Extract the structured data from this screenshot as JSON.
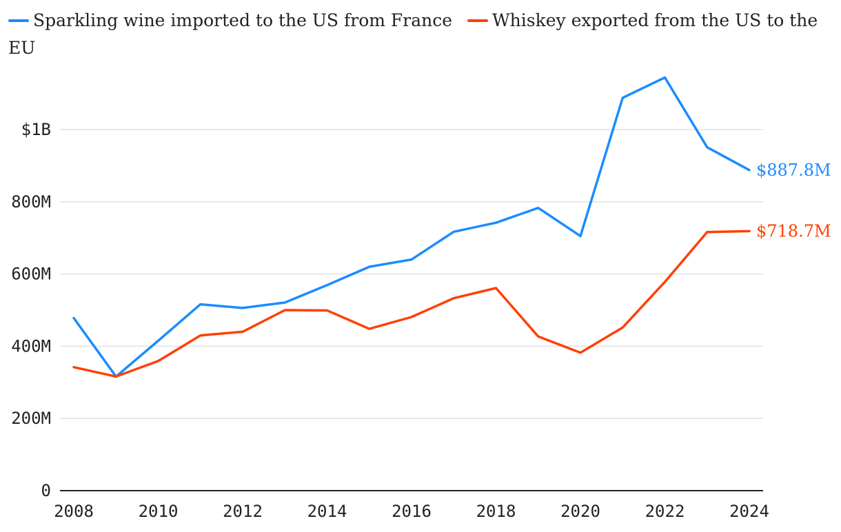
{
  "chart_data": {
    "type": "line",
    "title": "",
    "xlabel": "",
    "ylabel": "",
    "x": [
      2008,
      2009,
      2010,
      2011,
      2012,
      2013,
      2014,
      2015,
      2016,
      2017,
      2018,
      2019,
      2020,
      2021,
      2022,
      2023,
      2024
    ],
    "xlim": [
      2008,
      2024
    ],
    "ylim": [
      0,
      1150000000
    ],
    "grid": true,
    "legend_position": "top-left",
    "x_ticks": [
      {
        "value": 2008,
        "label": "2008"
      },
      {
        "value": 2010,
        "label": "2010"
      },
      {
        "value": 2012,
        "label": "2012"
      },
      {
        "value": 2014,
        "label": "2014"
      },
      {
        "value": 2016,
        "label": "2016"
      },
      {
        "value": 2018,
        "label": "2018"
      },
      {
        "value": 2020,
        "label": "2020"
      },
      {
        "value": 2022,
        "label": "2022"
      },
      {
        "value": 2024,
        "label": "2024"
      }
    ],
    "y_ticks": [
      {
        "value": 0,
        "label": "0"
      },
      {
        "value": 200000000,
        "label": "200M"
      },
      {
        "value": 400000000,
        "label": "400M"
      },
      {
        "value": 600000000,
        "label": "600M"
      },
      {
        "value": 800000000,
        "label": "800M"
      },
      {
        "value": 1000000000,
        "label": "$1B"
      }
    ],
    "series": [
      {
        "name": "Sparkling wine imported to the US from France",
        "color": "#1a8cff",
        "values": [
          478000000,
          316000000,
          415000000,
          516000000,
          506000000,
          521000000,
          569000000,
          620000000,
          640000000,
          717000000,
          742000000,
          783000000,
          705000000,
          1088000000,
          1144000000,
          951000000,
          887800000
        ],
        "end_label": "$887.8M"
      },
      {
        "name": "Whiskey exported from the US to the EU",
        "color": "#ff4000",
        "values": [
          342000000,
          316000000,
          359000000,
          430000000,
          440000000,
          500000000,
          499000000,
          448000000,
          481000000,
          533000000,
          561000000,
          427000000,
          382000000,
          452000000,
          578000000,
          716000000,
          718700000
        ],
        "end_label": "$718.7M"
      }
    ]
  }
}
